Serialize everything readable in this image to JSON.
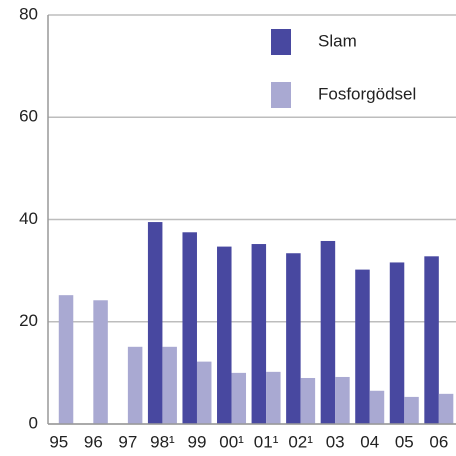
{
  "chart_data": {
    "type": "bar",
    "categories": [
      "95",
      "96",
      "97",
      "98¹",
      "99",
      "00¹",
      "01¹",
      "02¹",
      "03",
      "04",
      "05",
      "06"
    ],
    "series": [
      {
        "name": "Slam",
        "color": "#4848a0",
        "values": [
          null,
          null,
          null,
          39.5,
          37.5,
          34.7,
          35.2,
          33.4,
          35.8,
          30.2,
          31.6,
          32.8
        ]
      },
      {
        "name": "Fosforgödsel",
        "color": "#a9a9d2",
        "values": [
          25.2,
          24.2,
          15.1,
          15.1,
          12.2,
          10,
          10.2,
          9,
          9.2,
          6.5,
          5.3,
          5.9
        ]
      }
    ],
    "ylim": [
      0,
      80
    ],
    "yticks": [
      0,
      20,
      40,
      60,
      80
    ],
    "grid": true
  }
}
